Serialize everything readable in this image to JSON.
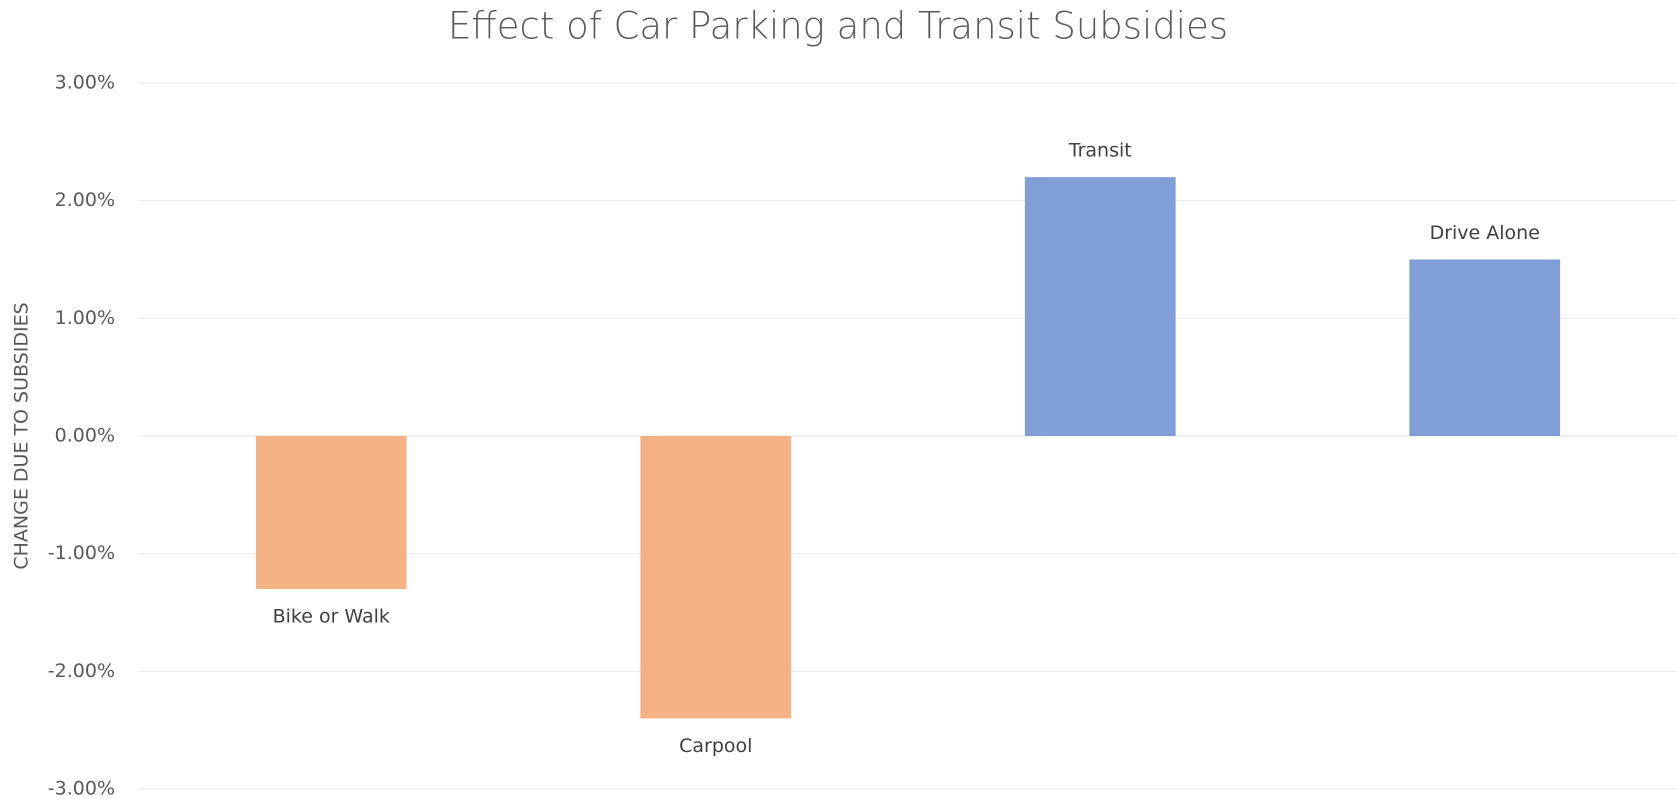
{
  "chart_data": {
    "type": "bar",
    "title": "Effect of Car Parking and Transit Subsidies",
    "y_label": "CHANGE DUE TO SUBSIDIES",
    "categories": [
      "Bike or Walk",
      "Carpool",
      "Transit",
      "Drive Alone"
    ],
    "values": [
      -1.3,
      -2.4,
      2.2,
      1.5
    ],
    "colors": [
      "#f4b183",
      "#f4b183",
      "#7f9fd6",
      "#7f9fd6"
    ],
    "ylim": [
      -3,
      3
    ],
    "yticks": [
      {
        "value": -3,
        "label": "-3.00%"
      },
      {
        "value": -2,
        "label": "-2.00%"
      },
      {
        "value": -1,
        "label": "-1.00%"
      },
      {
        "value": 0,
        "label": "0.00%"
      },
      {
        "value": 1,
        "label": "1.00%"
      },
      {
        "value": 2,
        "label": "2.00%"
      },
      {
        "value": 3,
        "label": "3.00%"
      }
    ],
    "grid": true
  }
}
